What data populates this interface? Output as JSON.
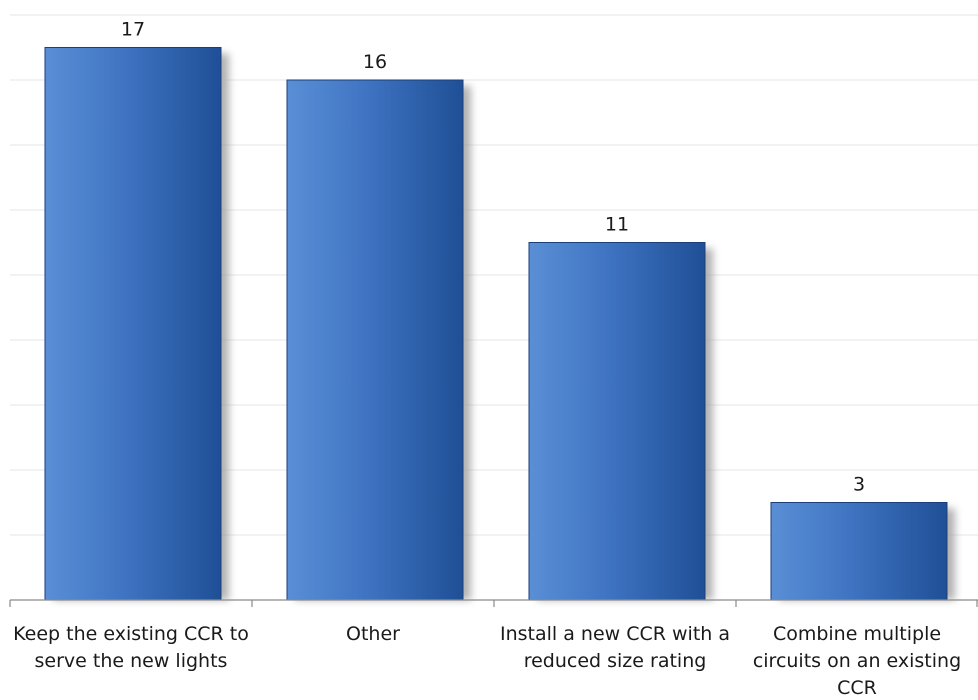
{
  "chart_data": {
    "type": "bar",
    "categories": [
      [
        "Keep the existing CCR to",
        "serve the new lights"
      ],
      [
        "Other"
      ],
      [
        "Install a new CCR with a",
        "reduced size rating"
      ],
      [
        "Combine multiple",
        "circuits on an existing",
        "CCR"
      ]
    ],
    "values": [
      17,
      16,
      11,
      3
    ],
    "data_labels": [
      "17",
      "16",
      "11",
      "3"
    ],
    "ylim": [
      0,
      18
    ],
    "grid": true,
    "legend": "none",
    "colors": {
      "bar_light": "#5a8fd6",
      "bar_mid": "#3f74c2",
      "bar_dark": "#1f4f96",
      "bar_edge": "#1b3f78",
      "shadow": "#9a9a9a",
      "gridline": "#e6e6e6",
      "axis": "#8a8a8a"
    }
  }
}
